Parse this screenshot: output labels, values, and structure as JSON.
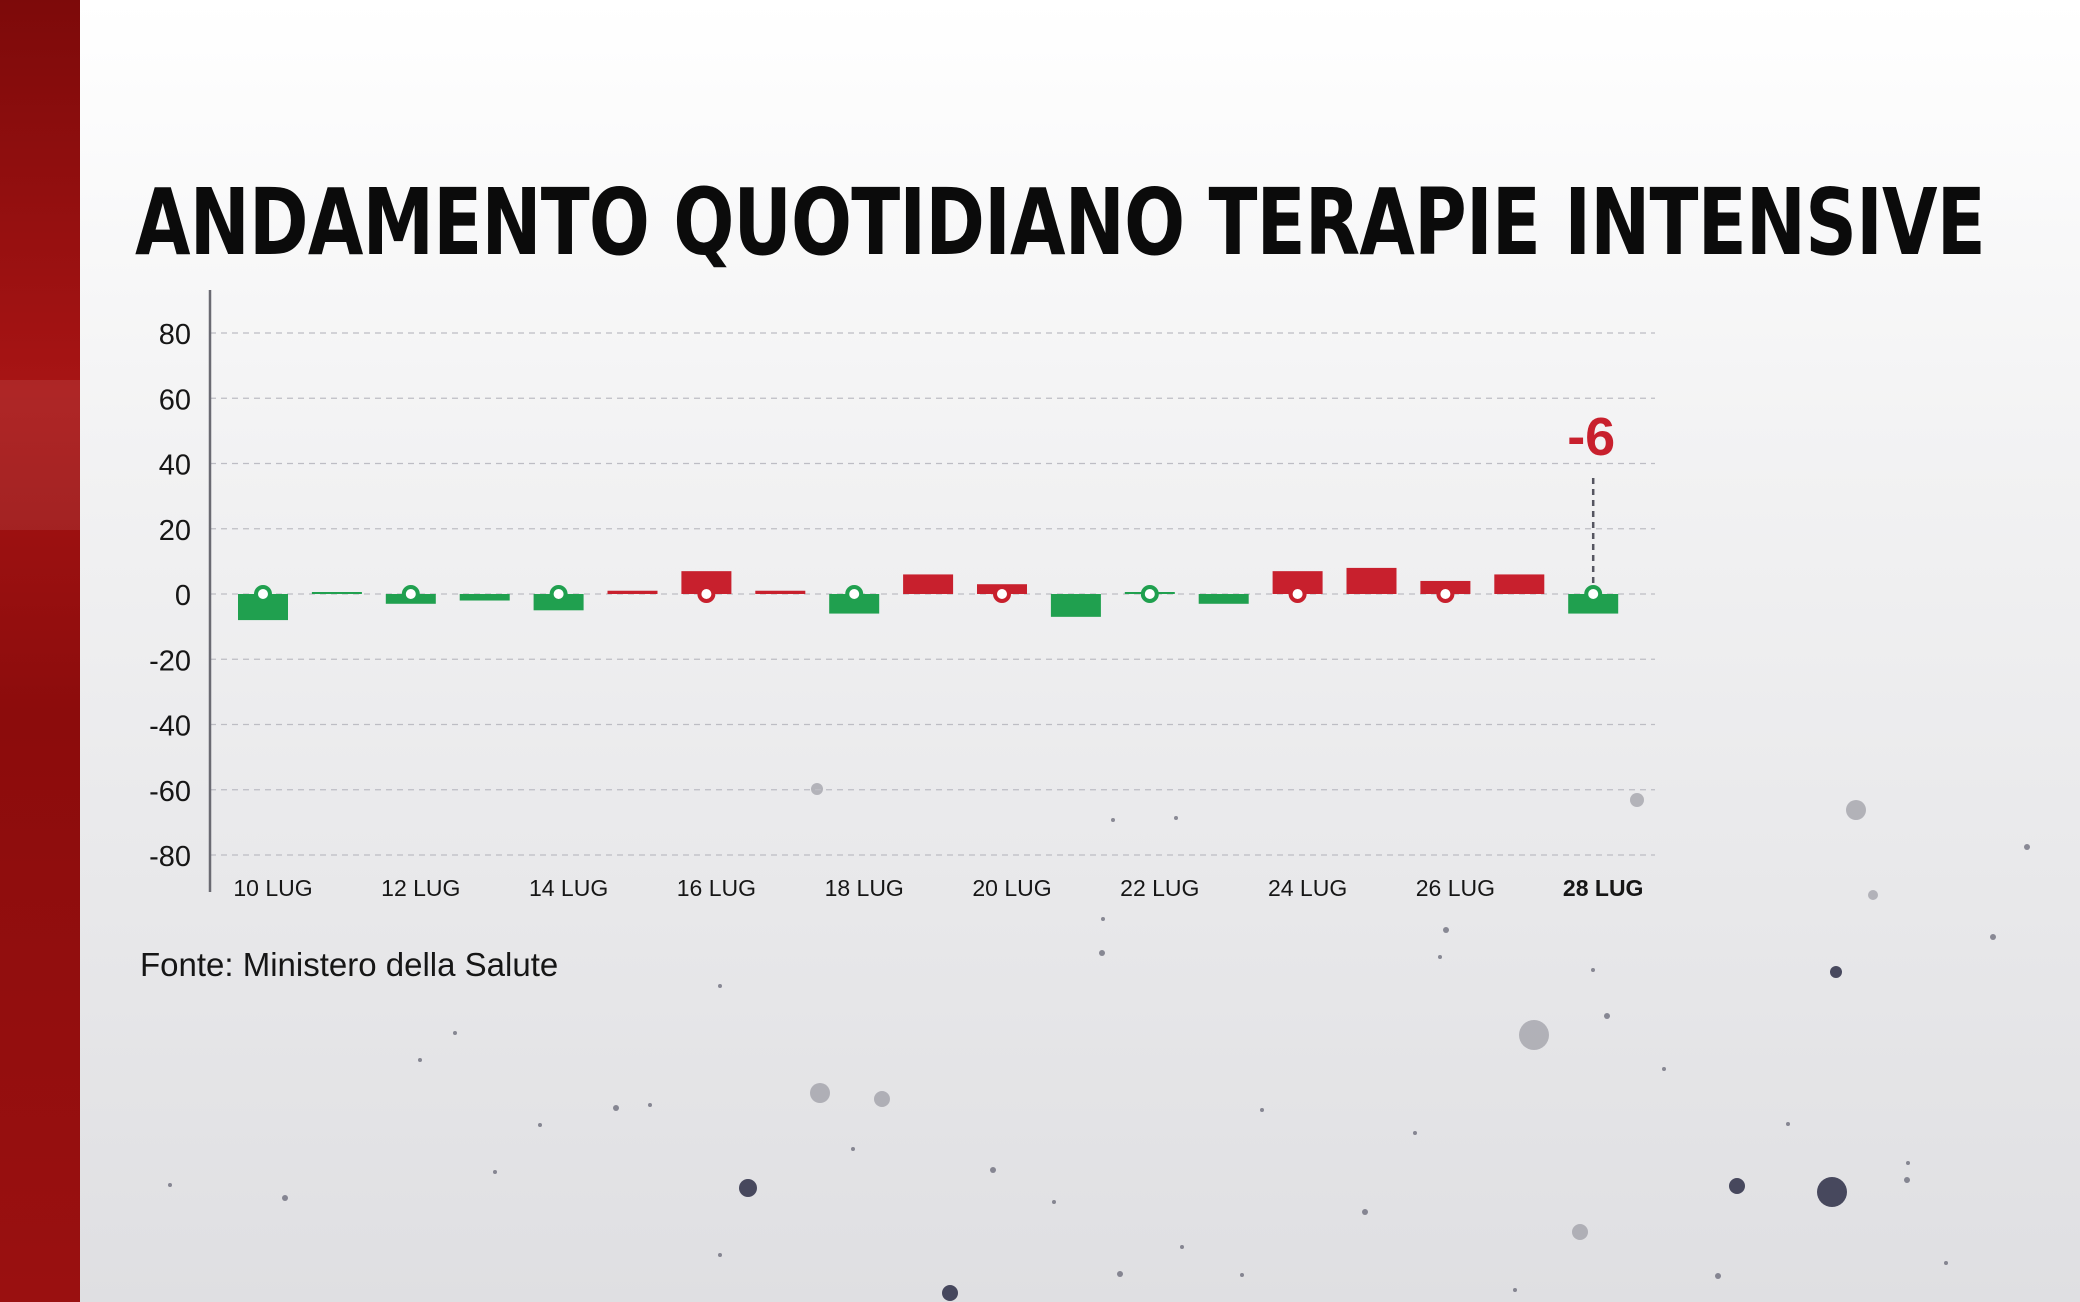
{
  "title": "ANDAMENTO QUOTIDIANO TERAPIE INTENSIVE",
  "source": "Fonte: Ministero della Salute",
  "colors": {
    "positive": "#c8202d",
    "negative": "#20a04f",
    "side_bar": "#a81414",
    "highlight": "#c8202d"
  },
  "chart_data": {
    "type": "bar",
    "title": "ANDAMENTO QUOTIDIANO TERAPIE INTENSIVE",
    "xlabel": "",
    "ylabel": "",
    "ylim": [
      -80,
      80
    ],
    "yticks": [
      "80",
      "60",
      "40",
      "20",
      "0",
      "-20",
      "-40",
      "-60",
      "-80"
    ],
    "ytick_values": [
      80,
      60,
      40,
      20,
      0,
      -20,
      -40,
      -60,
      -80
    ],
    "grid": true,
    "categories": [
      "10 LUG",
      "11 LUG",
      "12 LUG",
      "13 LUG",
      "14 LUG",
      "15 LUG",
      "16 LUG",
      "17 LUG",
      "18 LUG",
      "19 LUG",
      "20 LUG",
      "21 LUG",
      "22 LUG",
      "23 LUG",
      "24 LUG",
      "25 LUG",
      "26 LUG",
      "27 LUG",
      "28 LUG"
    ],
    "xtick_labels": [
      "10 LUG",
      "12 LUG",
      "14 LUG",
      "16 LUG",
      "18 LUG",
      "20 LUG",
      "22 LUG",
      "24 LUG",
      "26 LUG",
      "28 LUG"
    ],
    "values": [
      -8,
      0,
      -3,
      -2,
      -5,
      1,
      7,
      1,
      -6,
      6,
      3,
      -7,
      0,
      -3,
      7,
      8,
      4,
      6,
      -6
    ],
    "annotation": {
      "category": "28 LUG",
      "label": "-6"
    }
  }
}
